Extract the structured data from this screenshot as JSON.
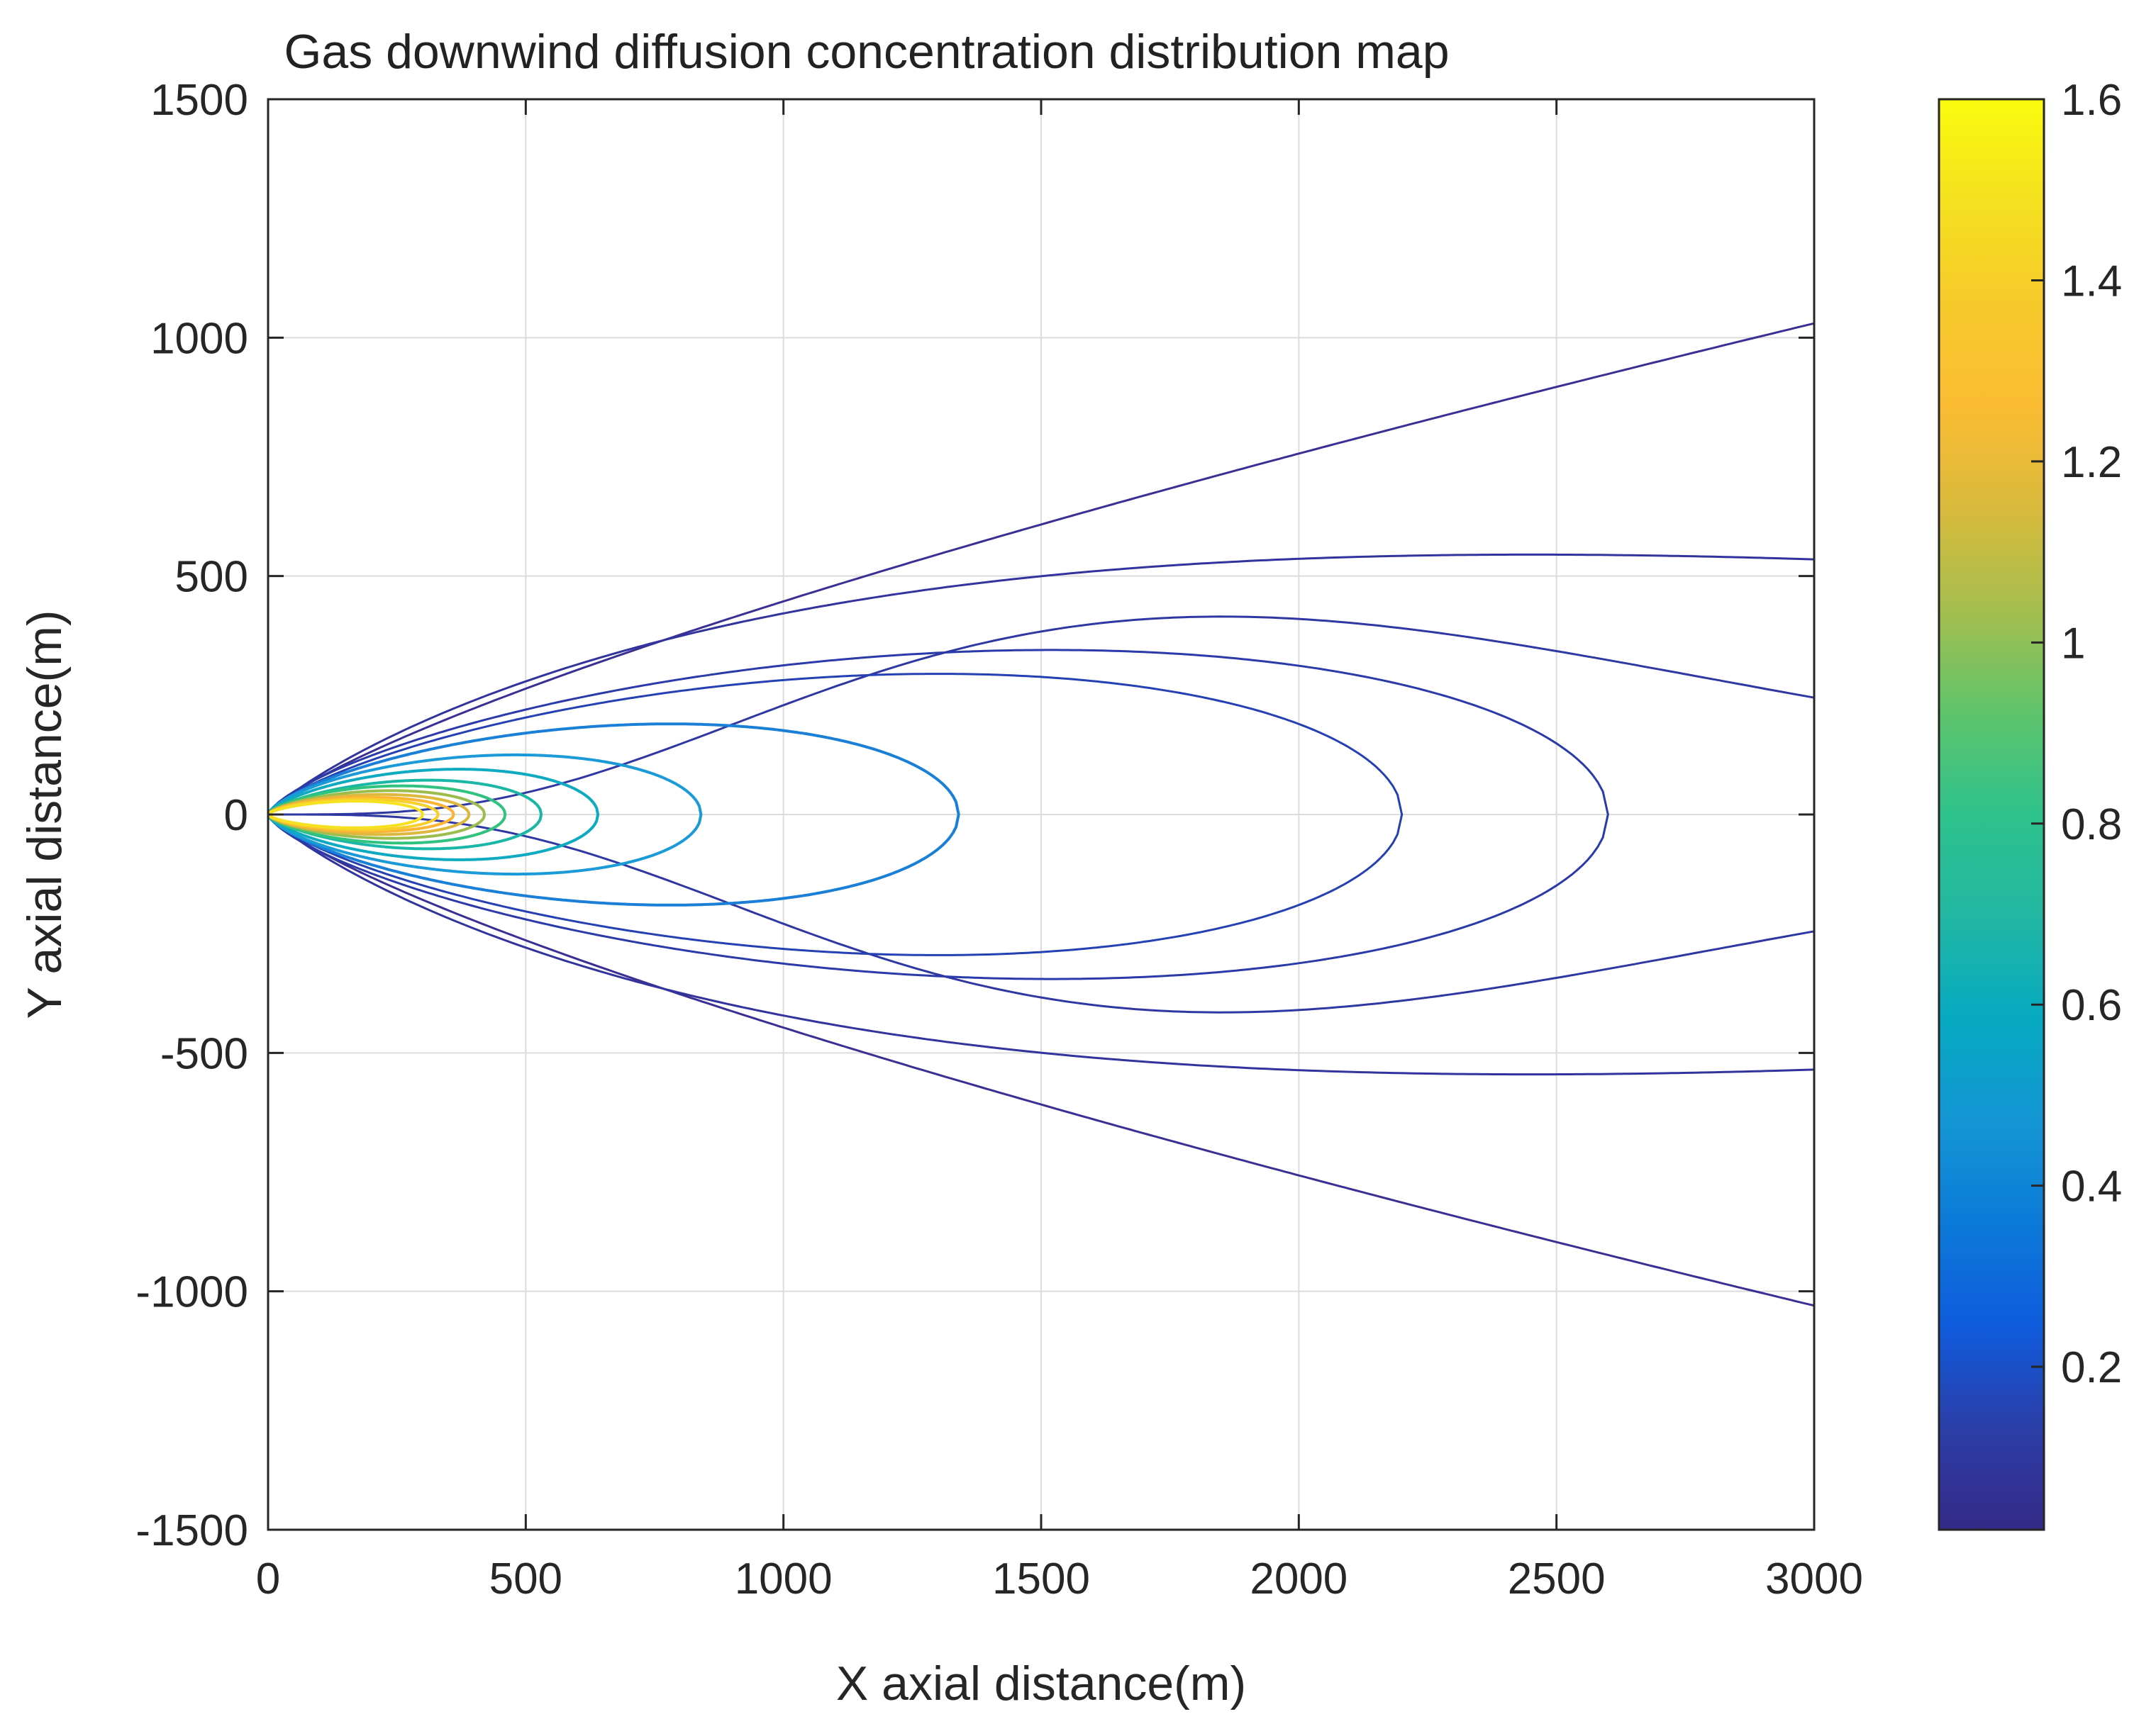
{
  "chart_data": {
    "type": "contour",
    "title": "Gas downwind diffusion concentration distribution map",
    "xlabel": "X axial distance(m)",
    "ylabel": "Y axial distance(m)",
    "xlim": [
      0,
      3000
    ],
    "ylim": [
      -1500,
      1500
    ],
    "xticks": [
      0,
      500,
      1000,
      1500,
      2000,
      2500,
      3000
    ],
    "yticks": [
      -1500,
      -1000,
      -500,
      0,
      500,
      1000,
      1500
    ],
    "xtick_labels": [
      "0",
      "500",
      "1000",
      "1500",
      "2000",
      "2500",
      "3000"
    ],
    "ytick_labels": [
      "-1500",
      "-1000",
      "-500",
      "0",
      "500",
      "1000",
      "1500"
    ],
    "grid": true,
    "colormap": "parula",
    "colorbar": {
      "range": [
        0.02,
        1.6
      ],
      "ticks": [
        0.2,
        0.4,
        0.6,
        0.8,
        1,
        1.2,
        1.4,
        1.6
      ],
      "tick_labels": [
        "0.2",
        "0.4",
        "0.6",
        "0.8",
        "1",
        "1.2",
        "1.4",
        "1.6"
      ],
      "stops": [
        "#352a87",
        "#2b3ea8",
        "#0f5cdd",
        "#0c7ad8",
        "#1496d4",
        "#06a9c1",
        "#22b7a3",
        "#2ec28c",
        "#5fc46b",
        "#a5be4e",
        "#d9ba3c",
        "#fbbc33",
        "#f6ca2b",
        "#f5e020",
        "#f9fb0e"
      ]
    },
    "source_x": 0,
    "contours": [
      {
        "level": 0.05,
        "color": "#3a2f93",
        "x_end": 3000,
        "y_at_end": 1030,
        "open": true
      },
      {
        "level": 0.08,
        "color": "#33339e",
        "max_half_width": 545,
        "x_at_max": 2450,
        "x_end": 3000,
        "y_at_end": 535,
        "open": true
      },
      {
        "level": 0.1,
        "color": "#2f37a3",
        "max_half_width": 415,
        "x_at_max": 1850,
        "x_end": 3000,
        "y_at_end": 245,
        "open": true
      },
      {
        "level": 0.12,
        "color": "#2a3aa8",
        "max_half_width": 345,
        "x_at_max": 1520,
        "x_extent": 2600
      },
      {
        "level": 0.14,
        "color": "#2540b3",
        "max_half_width": 295,
        "x_at_max": 1300,
        "x_extent": 2200
      },
      {
        "level": 0.3,
        "color": "#1a7fd6",
        "max_half_width": 190,
        "x_at_max": 780,
        "x_extent": 1340
      },
      {
        "level": 0.45,
        "color": "#1a9ad6",
        "max_half_width": 125,
        "x_at_max": 480,
        "x_extent": 840
      },
      {
        "level": 0.6,
        "color": "#0eaac2",
        "max_half_width": 95,
        "x_at_max": 370,
        "x_extent": 640
      },
      {
        "level": 0.75,
        "color": "#1ab7a6",
        "max_half_width": 72,
        "x_at_max": 310,
        "x_extent": 530
      },
      {
        "level": 0.9,
        "color": "#30c37f",
        "max_half_width": 60,
        "x_at_max": 260,
        "x_extent": 460
      },
      {
        "level": 1.05,
        "color": "#9bbd4e",
        "max_half_width": 50,
        "x_at_max": 240,
        "x_extent": 420
      },
      {
        "level": 1.2,
        "color": "#dcb83c",
        "max_half_width": 42,
        "x_at_max": 220,
        "x_extent": 390
      },
      {
        "level": 1.35,
        "color": "#fbb434",
        "max_half_width": 36,
        "x_at_max": 200,
        "x_extent": 360
      },
      {
        "level": 1.45,
        "color": "#f8cf2a",
        "max_half_width": 32,
        "x_at_max": 185,
        "x_extent": 330
      },
      {
        "level": 1.55,
        "color": "#f5e11f",
        "max_half_width": 28,
        "x_at_max": 170,
        "x_extent": 300
      }
    ]
  }
}
